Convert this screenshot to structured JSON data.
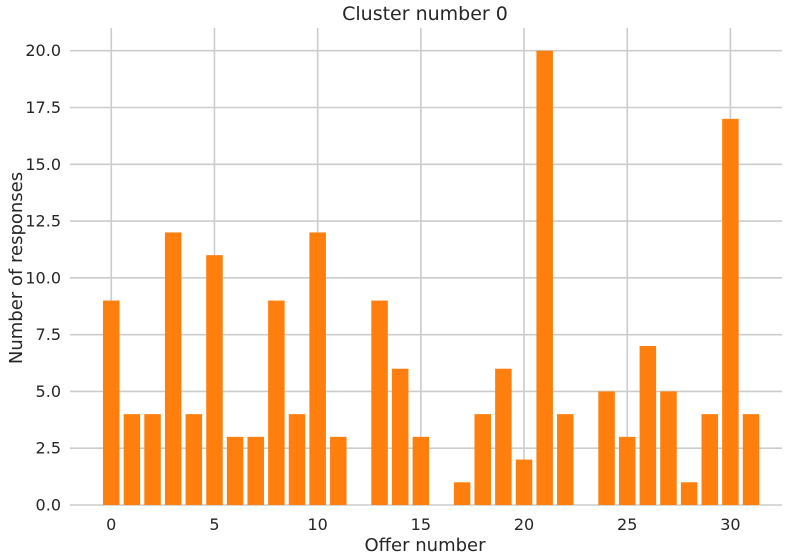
{
  "chart_data": {
    "type": "bar",
    "title": "Cluster number 0",
    "xlabel": "Offer number",
    "ylabel": "Number of responses",
    "x": [
      0,
      1,
      2,
      3,
      4,
      5,
      6,
      7,
      8,
      9,
      10,
      11,
      12,
      13,
      14,
      15,
      16,
      17,
      18,
      19,
      20,
      21,
      22,
      23,
      24,
      25,
      26,
      27,
      28,
      29,
      30,
      31
    ],
    "values": [
      9,
      4,
      4,
      12,
      4,
      11,
      3,
      3,
      9,
      4,
      12,
      3,
      0,
      9,
      6,
      3,
      0,
      1,
      4,
      6,
      2,
      20,
      4,
      0,
      5,
      3,
      7,
      5,
      1,
      4,
      17,
      4
    ],
    "xticks": [
      "0",
      "5",
      "10",
      "15",
      "20",
      "25",
      "30"
    ],
    "xtick_values": [
      0,
      5,
      10,
      15,
      20,
      25,
      30
    ],
    "yticks": [
      "0.0",
      "2.5",
      "5.0",
      "7.5",
      "10.0",
      "12.5",
      "15.0",
      "17.5",
      "20.0"
    ],
    "ytick_values": [
      0,
      2.5,
      5,
      7.5,
      10,
      12.5,
      15,
      17.5,
      20
    ],
    "xlim": [
      -2,
      32.5
    ],
    "ylim": [
      0,
      21
    ],
    "grid": true,
    "bar_color": "#ff7f0e",
    "grid_color": "#cccccc",
    "text_color": "#262626"
  }
}
